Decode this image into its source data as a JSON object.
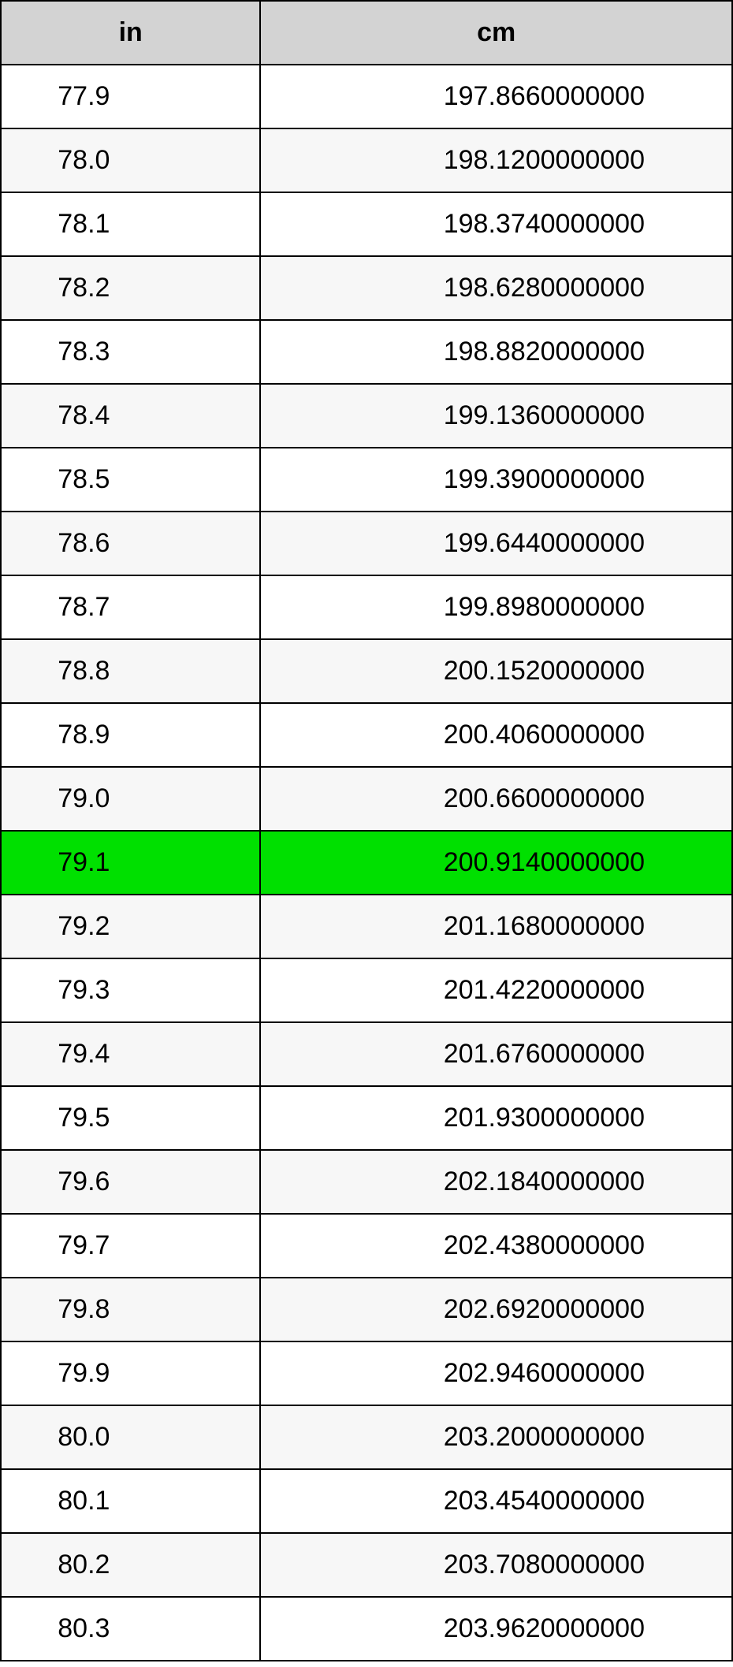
{
  "table": {
    "type": "table",
    "header_background": "#d3d3d3",
    "highlight_background": "#00e000",
    "row_even_background": "#ffffff",
    "row_odd_background": "#f7f7f7",
    "border_color": "#000000",
    "text_color": "#000000",
    "font_size": 34,
    "header_font_size": 34,
    "header_font_weight": "bold",
    "columns": [
      {
        "key": "in",
        "label": "in",
        "width": "35.5%"
      },
      {
        "key": "cm",
        "label": "cm",
        "width": "64.5%"
      }
    ],
    "highlight_row_index": 12,
    "rows": [
      {
        "in": "77.9",
        "cm": "197.8660000000"
      },
      {
        "in": "78.0",
        "cm": "198.1200000000"
      },
      {
        "in": "78.1",
        "cm": "198.3740000000"
      },
      {
        "in": "78.2",
        "cm": "198.6280000000"
      },
      {
        "in": "78.3",
        "cm": "198.8820000000"
      },
      {
        "in": "78.4",
        "cm": "199.1360000000"
      },
      {
        "in": "78.5",
        "cm": "199.3900000000"
      },
      {
        "in": "78.6",
        "cm": "199.6440000000"
      },
      {
        "in": "78.7",
        "cm": "199.8980000000"
      },
      {
        "in": "78.8",
        "cm": "200.1520000000"
      },
      {
        "in": "78.9",
        "cm": "200.4060000000"
      },
      {
        "in": "79.0",
        "cm": "200.6600000000"
      },
      {
        "in": "79.1",
        "cm": "200.9140000000"
      },
      {
        "in": "79.2",
        "cm": "201.1680000000"
      },
      {
        "in": "79.3",
        "cm": "201.4220000000"
      },
      {
        "in": "79.4",
        "cm": "201.6760000000"
      },
      {
        "in": "79.5",
        "cm": "201.9300000000"
      },
      {
        "in": "79.6",
        "cm": "202.1840000000"
      },
      {
        "in": "79.7",
        "cm": "202.4380000000"
      },
      {
        "in": "79.8",
        "cm": "202.6920000000"
      },
      {
        "in": "79.9",
        "cm": "202.9460000000"
      },
      {
        "in": "80.0",
        "cm": "203.2000000000"
      },
      {
        "in": "80.1",
        "cm": "203.4540000000"
      },
      {
        "in": "80.2",
        "cm": "203.7080000000"
      },
      {
        "in": "80.3",
        "cm": "203.9620000000"
      }
    ]
  }
}
